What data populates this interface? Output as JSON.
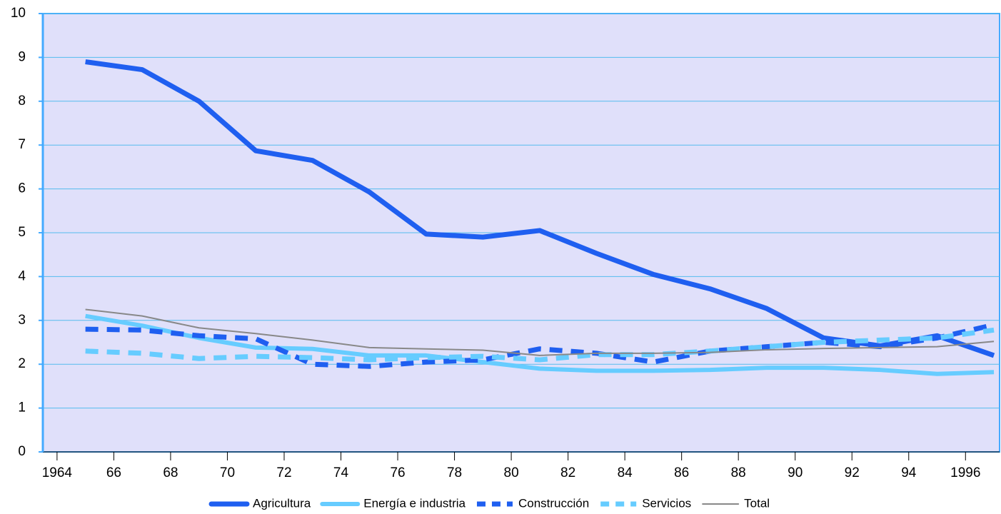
{
  "chart_data": {
    "type": "line",
    "x": [
      1965,
      1967,
      1969,
      1971,
      1973,
      1975,
      1977,
      1979,
      1981,
      1983,
      1985,
      1987,
      1989,
      1991,
      1993,
      1995,
      1997
    ],
    "series": [
      {
        "name": "Agricultura",
        "color": "#1f5ff0",
        "width": 7,
        "dashed": false,
        "values": [
          8.9,
          8.72,
          8.0,
          6.87,
          6.65,
          5.93,
          4.97,
          4.9,
          5.05,
          4.53,
          4.05,
          3.72,
          3.27,
          2.6,
          2.42,
          2.65,
          2.2
        ]
      },
      {
        "name": "Energía e industria",
        "color": "#66ccff",
        "width": 6,
        "dashed": false,
        "values": [
          3.1,
          2.88,
          2.6,
          2.38,
          2.35,
          2.2,
          2.2,
          2.05,
          1.9,
          1.85,
          1.85,
          1.87,
          1.92,
          1.92,
          1.87,
          1.78,
          1.82
        ]
      },
      {
        "name": "Construcción",
        "color": "#1f5ff0",
        "width": 7,
        "dashed": true,
        "values": [
          2.8,
          2.78,
          2.65,
          2.58,
          2.0,
          1.95,
          2.05,
          2.1,
          2.35,
          2.25,
          2.05,
          2.3,
          2.4,
          2.5,
          2.4,
          2.6,
          2.9
        ]
      },
      {
        "name": "Servicios",
        "color": "#66ccff",
        "width": 7,
        "dashed": true,
        "values": [
          2.3,
          2.25,
          2.13,
          2.18,
          2.15,
          2.1,
          2.15,
          2.18,
          2.1,
          2.22,
          2.22,
          2.3,
          2.4,
          2.5,
          2.55,
          2.6,
          2.78
        ]
      },
      {
        "name": "Total",
        "color": "#888888",
        "width": 2,
        "dashed": false,
        "values": [
          3.25,
          3.1,
          2.83,
          2.7,
          2.55,
          2.38,
          2.35,
          2.32,
          2.2,
          2.25,
          2.25,
          2.27,
          2.33,
          2.36,
          2.38,
          2.4,
          2.52
        ]
      }
    ],
    "xlim": [
      1963.5,
      1997.2
    ],
    "xticks": [
      1964,
      {
        "value": 1966,
        "label": "66"
      },
      {
        "value": 1968,
        "label": "68"
      },
      {
        "value": 1970,
        "label": "70"
      },
      {
        "value": 1972,
        "label": "72"
      },
      {
        "value": 1974,
        "label": "74"
      },
      {
        "value": 1976,
        "label": "76"
      },
      {
        "value": 1978,
        "label": "78"
      },
      {
        "value": 1980,
        "label": "80"
      },
      {
        "value": 1982,
        "label": "82"
      },
      {
        "value": 1984,
        "label": "84"
      },
      {
        "value": 1986,
        "label": "86"
      },
      {
        "value": 1988,
        "label": "88"
      },
      {
        "value": 1990,
        "label": "90"
      },
      {
        "value": 1992,
        "label": "92"
      },
      {
        "value": 1994,
        "label": "94"
      },
      1996
    ],
    "ylim": [
      0,
      10
    ],
    "yticks": [
      0,
      1,
      2,
      3,
      4,
      5,
      6,
      7,
      8,
      9,
      10
    ],
    "grid": true,
    "legend": "bottom"
  }
}
